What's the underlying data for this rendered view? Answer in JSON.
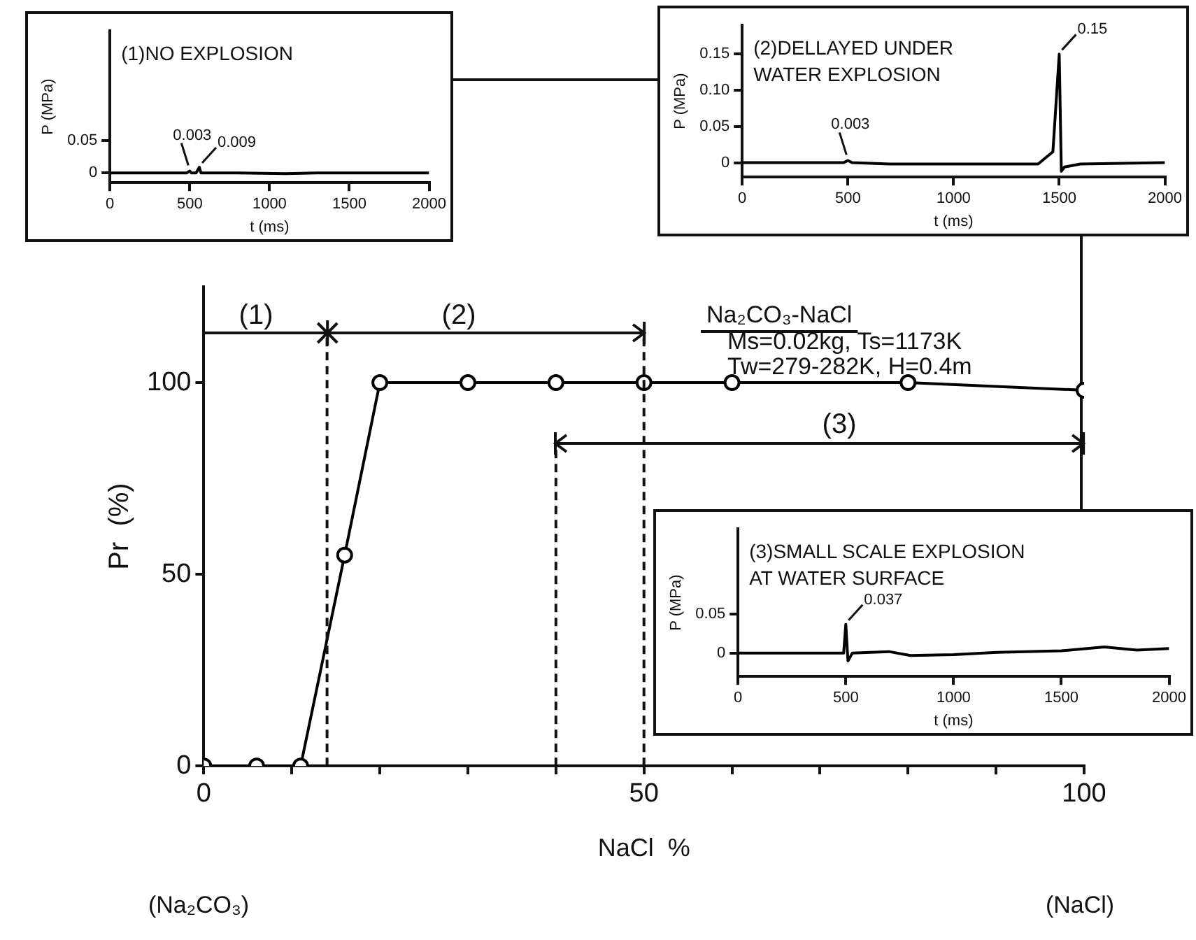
{
  "chart_data": [
    {
      "type": "line",
      "title": "(1)NO EXPLOSION",
      "xlabel": "t (ms)",
      "ylabel": "P (MPa)",
      "color": "#000000",
      "marker": "none",
      "x": [
        0,
        300,
        480,
        500,
        510,
        540,
        560,
        570,
        800,
        1100,
        1300,
        1600,
        2000
      ],
      "values": [
        0,
        0,
        0,
        0.003,
        0,
        0,
        0.009,
        0,
        0,
        -0.001,
        0,
        0,
        0
      ],
      "xlim": [
        0,
        2000
      ],
      "xticks": [
        0,
        500,
        1000,
        1500,
        2000
      ],
      "ylim": [
        -0.015,
        0.22
      ],
      "yticks": [
        0,
        0.05
      ],
      "annotations": [
        {
          "text": "0.003",
          "x": 500,
          "y": 0.003
        },
        {
          "text": "0.009",
          "x": 560,
          "y": 0.009
        }
      ]
    },
    {
      "type": "line",
      "title": "(2)DELLAYED UNDER\nWATER EXPLOSION",
      "xlabel": "t (ms)",
      "ylabel": "P (MPa)",
      "color": "#000000",
      "marker": "none",
      "x": [
        0,
        480,
        500,
        520,
        700,
        1000,
        1400,
        1470,
        1500,
        1510,
        1525,
        1600,
        2000
      ],
      "values": [
        0,
        0,
        0.003,
        0,
        -0.002,
        -0.002,
        -0.002,
        0.015,
        0.15,
        -0.012,
        -0.006,
        -0.002,
        0
      ],
      "xlim": [
        0,
        2000
      ],
      "xticks": [
        0,
        500,
        1000,
        1500,
        2000
      ],
      "ylim": [
        -0.02,
        0.19
      ],
      "yticks": [
        0,
        0.05,
        {
          "value": 0.1,
          "label": "0.10"
        },
        0.15
      ],
      "annotations": [
        {
          "text": "0.003",
          "x": 500,
          "y": 0.003
        },
        {
          "text": "0.15",
          "x": 1500,
          "y": 0.15
        }
      ]
    },
    {
      "type": "line",
      "xlabel": "NaCl  %",
      "ylabel": "Pr  (%)",
      "color": "#000000",
      "marker": "circle",
      "x": [
        0,
        6,
        11,
        16,
        20,
        30,
        40,
        50,
        60,
        80,
        100
      ],
      "values": [
        0,
        0,
        0,
        55,
        100,
        100,
        100,
        100,
        100,
        100,
        98
      ],
      "xlim": [
        0,
        100
      ],
      "xticks": [
        0,
        {
          "value": 10,
          "label": null
        },
        {
          "value": 20,
          "label": null
        },
        {
          "value": 30,
          "label": null
        },
        {
          "value": 40,
          "label": null
        },
        50,
        {
          "value": 60,
          "label": null
        },
        {
          "value": 70,
          "label": null
        },
        {
          "value": 80,
          "label": null
        },
        {
          "value": 90,
          "label": null
        },
        100
      ],
      "ylim": [
        0,
        125
      ],
      "yticks": [
        0,
        50,
        100
      ],
      "ref_lines": [
        {
          "axis": "x",
          "value": 14,
          "line_style": "dashed"
        },
        {
          "axis": "x",
          "value": 40,
          "line_style": "dashed"
        },
        {
          "axis": "x",
          "value": 50,
          "line_style": "dashed"
        }
      ],
      "annotations": [
        "Na₂CO₃-NaCl",
        "Ms=0.02kg, Ts=1173K",
        "Tw=279-282K, H=0.4m",
        "(Na₂CO₃)",
        "(NaCl)",
        "(1)",
        "(2)",
        "(3)"
      ]
    },
    {
      "type": "line",
      "title": "(3)SMALL SCALE EXPLOSION\nAT WATER SURFACE",
      "xlabel": "t (ms)",
      "ylabel": "P (MPa)",
      "color": "#000000",
      "marker": "none",
      "x": [
        0,
        300,
        490,
        500,
        510,
        530,
        700,
        800,
        1000,
        1200,
        1500,
        1700,
        1850,
        2000
      ],
      "values": [
        0,
        0,
        0,
        0.037,
        -0.01,
        0,
        0.002,
        -0.003,
        -0.002,
        0.001,
        0.003,
        0.008,
        0.004,
        0.006
      ],
      "xlim": [
        0,
        2000
      ],
      "xticks": [
        0,
        500,
        1000,
        1500,
        2000
      ],
      "ylim": [
        -0.03,
        0.16
      ],
      "yticks": [
        0,
        0.05
      ],
      "annotations": [
        {
          "text": "0.037",
          "x": 500,
          "y": 0.037
        }
      ]
    }
  ]
}
